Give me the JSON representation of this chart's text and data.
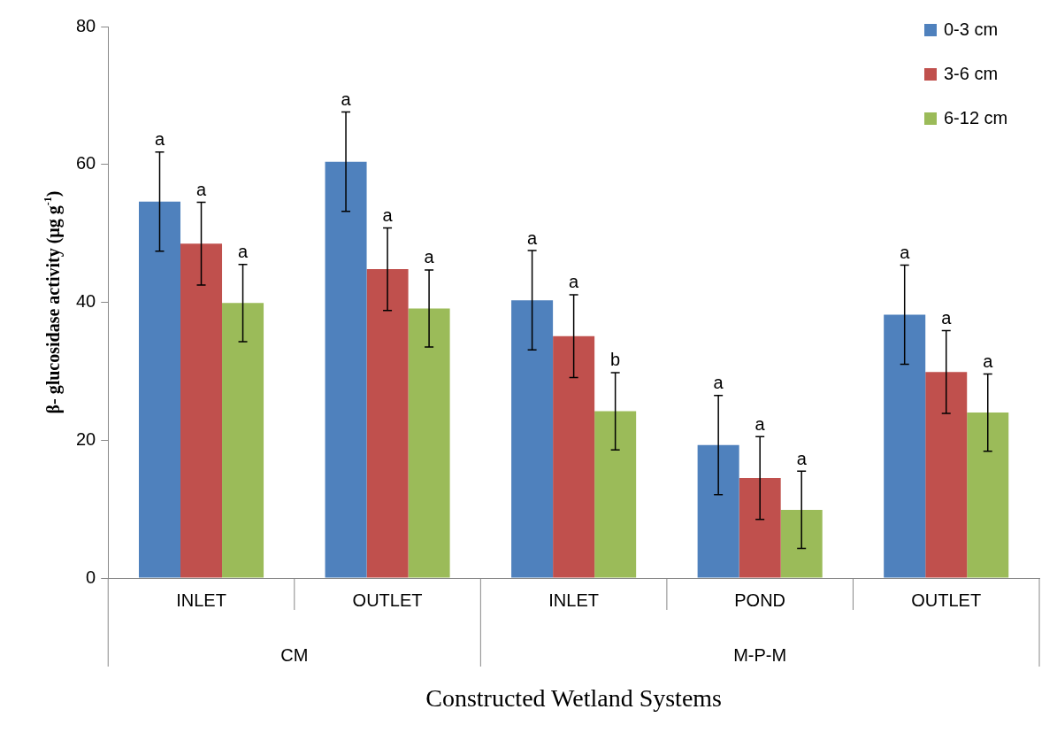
{
  "chart_data": {
    "type": "bar",
    "xlabel": "Constructed Wetland Systems",
    "ylabel": "β- glucosidase activity (µg g$^{-1}$)",
    "categories": [
      "INLET",
      "OUTLET",
      "INLET",
      "POND",
      "OUTLET"
    ],
    "series": [
      {
        "name": "0-3 cm",
        "color": "#4f81bd",
        "values": [
          54.6,
          60.4,
          40.3,
          19.3,
          38.2
        ],
        "errors": [
          7.2,
          7.2,
          7.2,
          7.2,
          7.2
        ],
        "value_labels": [
          "a",
          "a",
          "a",
          "a",
          "a"
        ]
      },
      {
        "name": "3-6 cm",
        "color": "#c0504d",
        "values": [
          48.5,
          44.8,
          35.1,
          14.5,
          29.9
        ],
        "errors": [
          6,
          6,
          6,
          6,
          6
        ],
        "value_labels": [
          "a",
          "a",
          "a",
          "a",
          "a"
        ]
      },
      {
        "name": "6-12 cm",
        "color": "#9bbb59",
        "values": [
          39.9,
          39.1,
          24.2,
          9.9,
          24.0
        ],
        "errors": [
          5.6,
          5.6,
          5.6,
          5.6,
          5.6
        ],
        "value_labels": [
          "a",
          "a",
          "b",
          "a",
          "a"
        ]
      }
    ],
    "annotations": [
      "CM",
      "M-P-M"
    ],
    "ylim": [
      0,
      80
    ],
    "yticks": [
      0,
      20,
      40,
      60,
      80
    ],
    "grid": false,
    "legend": "top right"
  }
}
